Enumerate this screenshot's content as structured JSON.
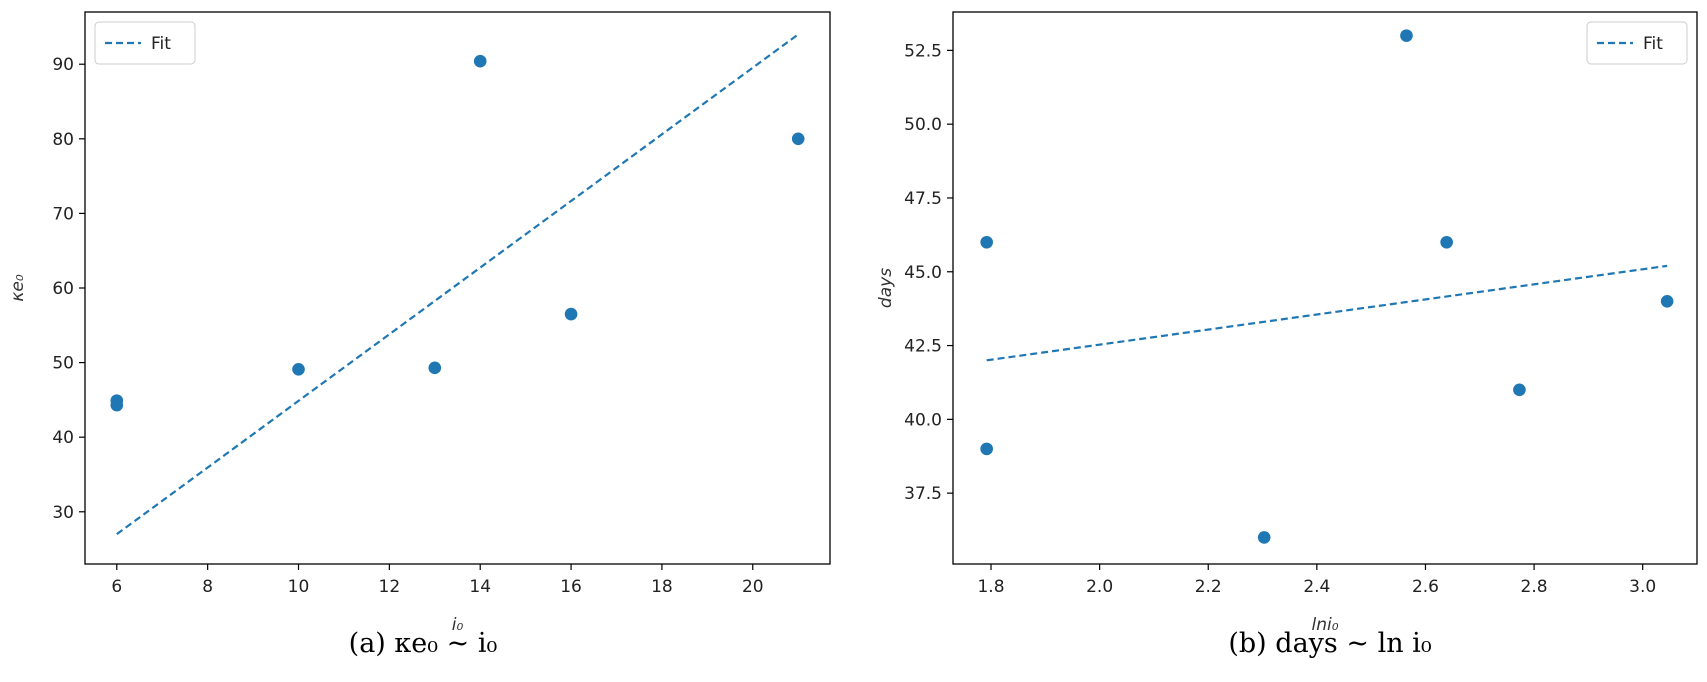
{
  "chart_data": [
    {
      "type": "scatter",
      "caption": "(a) κe₀ ~ i₀",
      "xlabel": "i₀",
      "ylabel": "κe₀",
      "xlim": [
        5.3,
        21.7
      ],
      "ylim": [
        23.0,
        97.0
      ],
      "xticks": [
        6,
        8,
        10,
        12,
        14,
        16,
        18,
        20
      ],
      "xtick_labels": [
        "6",
        "8",
        "10",
        "12",
        "14",
        "16",
        "18",
        "20"
      ],
      "yticks": [
        30,
        40,
        50,
        60,
        70,
        80,
        90
      ],
      "ytick_labels": [
        "30",
        "40",
        "50",
        "60",
        "70",
        "80",
        "90"
      ],
      "points": [
        {
          "x": 6,
          "y": 44.3
        },
        {
          "x": 6,
          "y": 44.9
        },
        {
          "x": 10,
          "y": 49.1
        },
        {
          "x": 13,
          "y": 49.3
        },
        {
          "x": 14,
          "y": 90.4
        },
        {
          "x": 16,
          "y": 56.5
        },
        {
          "x": 21,
          "y": 80.0
        }
      ],
      "fit": {
        "name": "Fit",
        "x": [
          6,
          21
        ],
        "y": [
          27.0,
          94.0
        ]
      },
      "legend": {
        "placement": "upper-left",
        "entries": [
          "Fit"
        ]
      },
      "grid": false,
      "colors": {
        "marker": "#1f77b4",
        "fit": "#1f77b4"
      }
    },
    {
      "type": "scatter",
      "caption": "(b) days ~ ln i₀",
      "xlabel": "lni₀",
      "ylabel": "days",
      "xlim": [
        1.73,
        3.1
      ],
      "ylim": [
        35.1,
        53.8
      ],
      "xticks": [
        1.8,
        2.0,
        2.2,
        2.4,
        2.6,
        2.8,
        3.0
      ],
      "xtick_labels": [
        "1.8",
        "2.0",
        "2.2",
        "2.4",
        "2.6",
        "2.8",
        "3.0"
      ],
      "yticks": [
        37.5,
        40.0,
        42.5,
        45.0,
        47.5,
        50.0,
        52.5
      ],
      "ytick_labels": [
        "37.5",
        "40.0",
        "42.5",
        "45.0",
        "47.5",
        "50.0",
        "52.5"
      ],
      "points": [
        {
          "x": 1.792,
          "y": 46.0
        },
        {
          "x": 1.792,
          "y": 39.0
        },
        {
          "x": 2.303,
          "y": 36.0
        },
        {
          "x": 2.565,
          "y": 53.0
        },
        {
          "x": 2.639,
          "y": 46.0
        },
        {
          "x": 2.773,
          "y": 41.0
        },
        {
          "x": 3.045,
          "y": 44.0
        }
      ],
      "fit": {
        "name": "Fit",
        "x": [
          1.792,
          3.045
        ],
        "y": [
          42.0,
          45.2
        ]
      },
      "legend": {
        "placement": "upper-right",
        "entries": [
          "Fit"
        ]
      },
      "grid": false,
      "colors": {
        "marker": "#1f77b4",
        "fit": "#1f77b4"
      }
    }
  ]
}
